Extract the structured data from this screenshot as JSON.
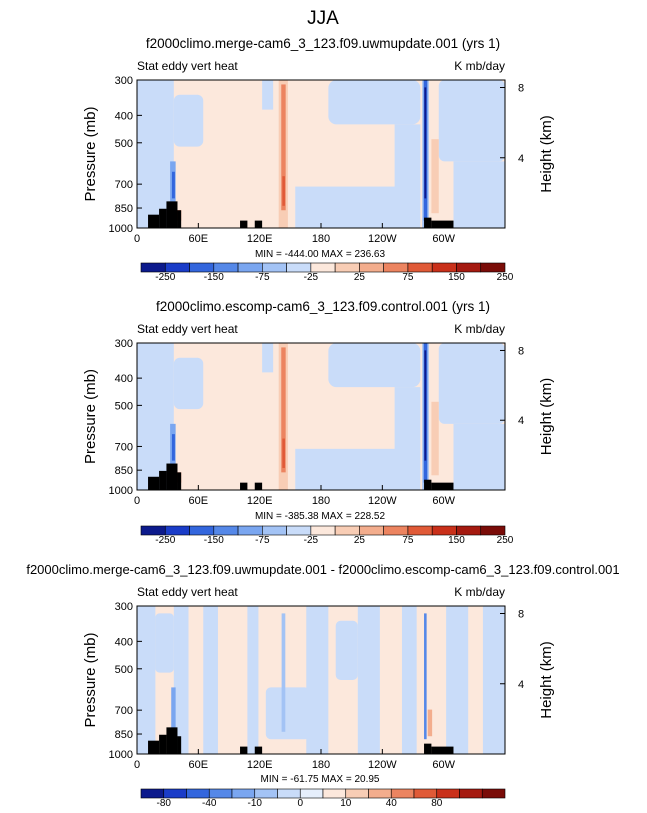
{
  "page_title": "JJA",
  "chart_data": [
    {
      "type": "heatmap",
      "title": "f2000climo.merge-cam6_3_123.f09.uwmupdate.001 (yrs 1)",
      "left_label": "Stat eddy vert heat",
      "right_label": "K mb/day",
      "ylabel": "Pressure (mb)",
      "y2label": "Height (km)",
      "yticks": [
        "300",
        "400",
        "500",
        "700",
        "850",
        "1000"
      ],
      "y2ticks": [
        "8",
        "4"
      ],
      "xticks": [
        "0",
        "60E",
        "120E",
        "180",
        "120W",
        "60W"
      ],
      "stats": "MIN = -444.00   MAX = 236.63",
      "colorbar_labels": [
        "-250",
        "-150",
        "-75",
        "-25",
        "25",
        "75",
        "150",
        "250"
      ]
    },
    {
      "type": "heatmap",
      "title": "f2000climo.escomp-cam6_3_123.f09.control.001 (yrs 1)",
      "left_label": "Stat eddy vert heat",
      "right_label": "K mb/day",
      "ylabel": "Pressure (mb)",
      "y2label": "Height (km)",
      "yticks": [
        "300",
        "400",
        "500",
        "700",
        "850",
        "1000"
      ],
      "y2ticks": [
        "8",
        "4"
      ],
      "xticks": [
        "0",
        "60E",
        "120E",
        "180",
        "120W",
        "60W"
      ],
      "stats": "MIN = -385.38   MAX = 228.52",
      "colorbar_labels": [
        "-250",
        "-150",
        "-75",
        "-25",
        "25",
        "75",
        "150",
        "250"
      ]
    },
    {
      "type": "heatmap",
      "title": "f2000climo.merge-cam6_3_123.f09.uwmupdate.001 - f2000climo.escomp-cam6_3_123.f09.control.001",
      "left_label": "Stat eddy vert heat",
      "right_label": "K mb/day",
      "ylabel": "Pressure (mb)",
      "y2label": "Height (km)",
      "yticks": [
        "300",
        "400",
        "500",
        "700",
        "850",
        "1000"
      ],
      "y2ticks": [
        "8",
        "4"
      ],
      "xticks": [
        "0",
        "60E",
        "120E",
        "180",
        "120W",
        "60W"
      ],
      "stats": "MIN = -61.75   MAX =  20.95",
      "colorbar_labels": [
        "-80",
        "-40",
        "-10",
        "0",
        "10",
        "40",
        "80"
      ]
    }
  ],
  "colors": {
    "colorbar_main": [
      "#0c1a8c",
      "#1a3cc8",
      "#3366dd",
      "#5588e8",
      "#7aa6f0",
      "#a3c3f5",
      "#c9dcf9",
      "#fce8dc",
      "#f8cdb5",
      "#f3ad8d",
      "#ec8460",
      "#e05a37",
      "#c9301a",
      "#a51a10",
      "#7a0c08"
    ],
    "colorbar_diff": [
      "#0c1a8c",
      "#1a3cc8",
      "#3366dd",
      "#5588e8",
      "#7aa6f0",
      "#a3c3f5",
      "#c9dcf9",
      "#e6effc",
      "#fce8dc",
      "#f8cdb5",
      "#f3ad8d",
      "#ec8460",
      "#e05a37",
      "#c9301a",
      "#a51a10",
      "#7a0c08"
    ],
    "light_blue": "#c9dcf9",
    "light_peach": "#fce8dc",
    "terrain": "#000000"
  }
}
